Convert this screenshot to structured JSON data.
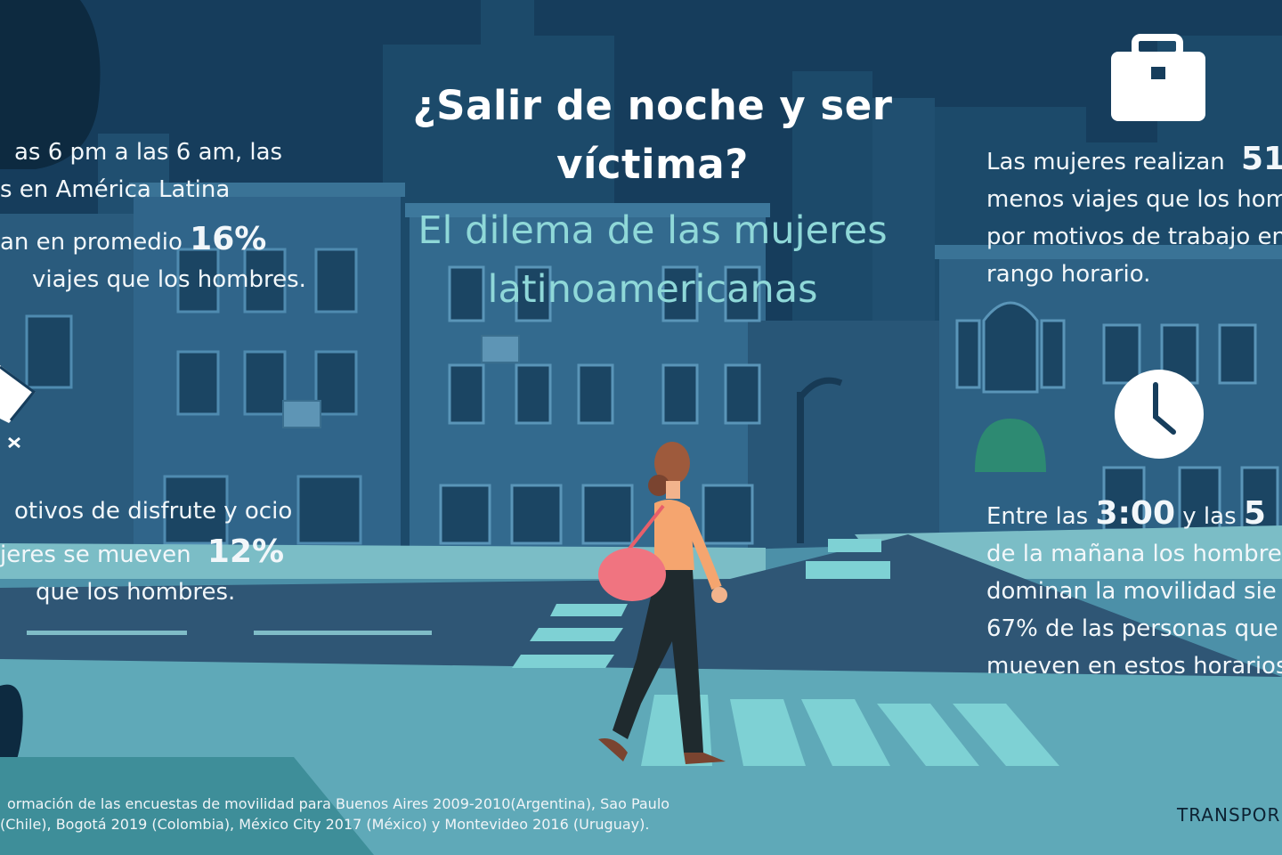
{
  "title": {
    "line1": "¿Salir de noche y ser",
    "line2": "víctima?"
  },
  "subtitle": {
    "line1": "El dilema de las mujeres",
    "line2": "latinoamericanas"
  },
  "left_block_1": {
    "line1": "as 6 pm a las 6 am, las",
    "line2": "s en América Latina",
    "line3_pre": "an en promedio",
    "line3_value": "16%",
    "line4": "viajes que los hombres."
  },
  "left_block_2": {
    "line1": "otivos de disfrute y ocio",
    "line2_pre": "jeres se mueven",
    "line2_value": "12%",
    "line3": "que los hombres."
  },
  "right_block_1": {
    "line1_pre": "Las mujeres realizan",
    "line1_value": "51",
    "line2": "menos viajes que los hom",
    "line3": "por motivos de trabajo en",
    "line4": "rango horario."
  },
  "right_block_2": {
    "line1_pre": "Entre las",
    "line1_value": "3:00",
    "line1_post": "y las",
    "line1_value2": "5",
    "line2": "de la mañana los hombre",
    "line3": "dominan la movilidad sie",
    "line4": "67% de las personas que",
    "line5": "mueven en estos horarios"
  },
  "footnote": {
    "line1": "ormación de las encuestas de movilidad para Buenos Aires 2009-2010(Argentina), Sao Paulo",
    "line2": "(Chile), Bogotá 2019 (Colombia), México City 2017 (México) y Montevideo 2016 (Uruguay)."
  },
  "brand": "TRANSPOR",
  "icons": [
    "briefcase-icon",
    "clock-icon",
    "envelope-icon"
  ],
  "colors": {
    "sky": "#163d5c",
    "title": "#ffffff",
    "subtitle": "#8fd8d8",
    "crosswalk": "#6cc7c9",
    "street": "#2f5675"
  }
}
